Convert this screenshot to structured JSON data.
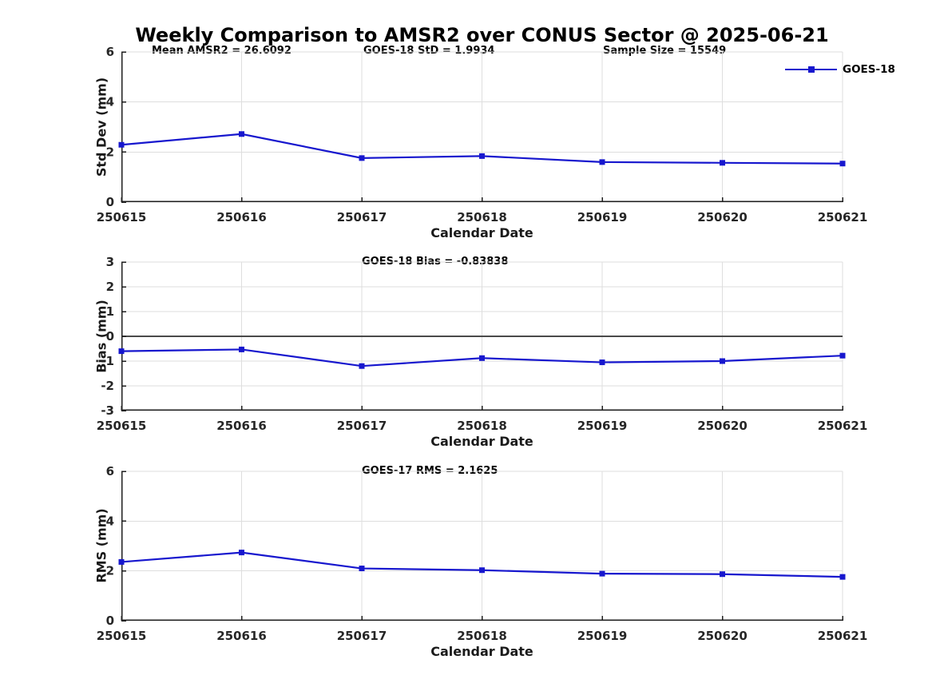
{
  "title": "Weekly Comparison to AMSR2 over CONUS Sector @ 2025-06-21",
  "legend": {
    "label": "GOES-18",
    "position": "top-right"
  },
  "colors": {
    "line": "#1717ce",
    "grid": "#dedede",
    "axis": "#1f1f1f",
    "tick_text": "#262626",
    "label_text": "#1a1a1a",
    "zero_line": "#4a4a4a",
    "background": "#ffffff"
  },
  "chart_data": [
    {
      "type": "line",
      "marker": "square",
      "ylabel": "Std Dev (mm)",
      "xlabel": "Calendar Date",
      "categories": [
        "250615",
        "250616",
        "250617",
        "250618",
        "250619",
        "250620",
        "250621"
      ],
      "series": [
        {
          "name": "GOES-18",
          "values": [
            2.29,
            2.72,
            1.76,
            1.84,
            1.6,
            1.57,
            1.54
          ]
        }
      ],
      "ylim": [
        0,
        6
      ],
      "yticks": [
        0,
        2,
        4,
        6
      ],
      "grid": true,
      "zero_line": false,
      "annotations": [
        "Mean AMSR2 = 26.6092",
        "GOES-18 StD = 1.9934",
        "Sample Size = 15549"
      ]
    },
    {
      "type": "line",
      "marker": "square",
      "ylabel": "Bias (mm)",
      "xlabel": "Calendar Date",
      "categories": [
        "250615",
        "250616",
        "250617",
        "250618",
        "250619",
        "250620",
        "250621"
      ],
      "series": [
        {
          "name": "GOES-18",
          "values": [
            -0.6,
            -0.53,
            -1.2,
            -0.88,
            -1.05,
            -1.0,
            -0.78
          ]
        }
      ],
      "ylim": [
        -3,
        3
      ],
      "yticks": [
        -3,
        -2,
        -1,
        0,
        1,
        2,
        3
      ],
      "grid": true,
      "zero_line": true,
      "annotations": [
        "GOES-18 Bias  = -0.83838"
      ]
    },
    {
      "type": "line",
      "marker": "square",
      "ylabel": "RMS (mm)",
      "xlabel": "Calendar Date",
      "categories": [
        "250615",
        "250616",
        "250617",
        "250618",
        "250619",
        "250620",
        "250621"
      ],
      "series": [
        {
          "name": "GOES-18",
          "values": [
            2.36,
            2.74,
            2.1,
            2.03,
            1.89,
            1.87,
            1.76
          ]
        }
      ],
      "ylim": [
        0,
        6
      ],
      "yticks": [
        0,
        2,
        4,
        6
      ],
      "grid": true,
      "zero_line": false,
      "annotations": [
        "GOES-17 RMS = 2.1625"
      ]
    }
  ]
}
